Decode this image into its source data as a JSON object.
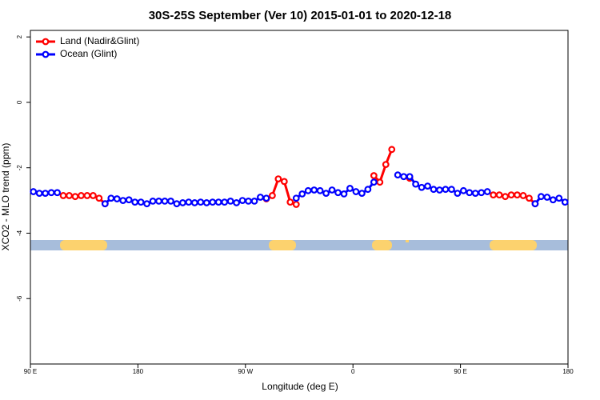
{
  "chart_data": {
    "type": "line",
    "title": "30S-25S September (Ver 10)   2015-01-01 to 2020-12-18",
    "xlabel": "Longitude (deg E)",
    "ylabel": "XCO2 - MLO trend (ppm)",
    "x": [
      92.5,
      97.5,
      102.5,
      107.5,
      112.5,
      117.5,
      122.5,
      127.5,
      132.5,
      137.5,
      142.5,
      147.5,
      152.5,
      157.5,
      162.5,
      167.5,
      172.5,
      177.5,
      182.5,
      187.5,
      192.5,
      197.5,
      202.5,
      207.5,
      212.5,
      217.5,
      222.5,
      227.5,
      232.5,
      237.5,
      242.5,
      247.5,
      252.5,
      257.5,
      262.5,
      267.5,
      272.5,
      277.5,
      282.5,
      287.5,
      292.5,
      297.5,
      302.5,
      307.5,
      312.5,
      317.5,
      322.5,
      327.5,
      332.5,
      337.5,
      342.5,
      347.5,
      352.5,
      357.5,
      362.5,
      367.5,
      372.5,
      377.5,
      382.5,
      387.5,
      392.5,
      397.5,
      402.5,
      407.5,
      412.5,
      417.5,
      422.5,
      427.5,
      432.5,
      437.5,
      442.5,
      447.5,
      452.5,
      457.5,
      462.5,
      467.5,
      472.5,
      477.5,
      482.5,
      487.5,
      492.5,
      497.5,
      502.5,
      507.5,
      512.5,
      517.5,
      522.5,
      527.5,
      532.5,
      537.5
    ],
    "series": [
      {
        "name": "Land (Nadir&Glint)",
        "color": "#ff0000",
        "values": [
          null,
          null,
          null,
          null,
          null,
          -2.85,
          -2.85,
          -2.88,
          -2.85,
          -2.85,
          -2.85,
          -2.93,
          -3.1,
          null,
          null,
          null,
          null,
          null,
          null,
          null,
          null,
          null,
          null,
          null,
          null,
          null,
          null,
          null,
          null,
          null,
          null,
          null,
          null,
          null,
          null,
          null,
          null,
          null,
          null,
          -2.95,
          -2.85,
          -2.34,
          -2.42,
          -3.05,
          -3.12,
          null,
          null,
          null,
          null,
          null,
          null,
          null,
          null,
          null,
          null,
          null,
          null,
          -2.24,
          -2.44,
          -1.9,
          -1.44,
          null,
          null,
          -2.32,
          null,
          null,
          null,
          null,
          null,
          null,
          null,
          null,
          null,
          null,
          null,
          null,
          null,
          -2.83,
          -2.83,
          -2.88,
          -2.83,
          -2.83,
          -2.85,
          -2.93,
          -3.1,
          null,
          null,
          null,
          null,
          null
        ]
      },
      {
        "name": "Ocean (Glint)",
        "color": "#0000ff",
        "values": [
          -2.73,
          -2.78,
          -2.78,
          -2.76,
          -2.76,
          null,
          null,
          null,
          null,
          null,
          null,
          null,
          -3.1,
          -2.93,
          -2.95,
          -3.0,
          -2.98,
          -3.05,
          -3.05,
          -3.1,
          -3.02,
          -3.02,
          -3.02,
          -3.02,
          -3.1,
          -3.07,
          -3.05,
          -3.07,
          -3.05,
          -3.07,
          -3.05,
          -3.05,
          -3.05,
          -3.02,
          -3.07,
          -3.0,
          -3.02,
          -3.02,
          -2.9,
          -2.93,
          null,
          null,
          null,
          null,
          -2.93,
          -2.8,
          -2.7,
          -2.68,
          -2.7,
          -2.78,
          -2.68,
          -2.76,
          -2.8,
          -2.63,
          -2.73,
          -2.78,
          -2.66,
          -2.44,
          null,
          null,
          null,
          -2.22,
          -2.27,
          -2.27,
          -2.5,
          -2.6,
          -2.56,
          -2.66,
          -2.68,
          -2.66,
          -2.66,
          -2.78,
          -2.7,
          -2.76,
          -2.78,
          -2.76,
          -2.73,
          null,
          null,
          null,
          null,
          null,
          null,
          null,
          -3.1,
          -2.88,
          -2.9,
          -2.98,
          -2.93,
          -3.05
        ]
      }
    ],
    "xlim": [
      90,
      540
    ],
    "xticks": [
      {
        "value": 90,
        "label": "90 E"
      },
      180,
      {
        "value": 270,
        "label": "90 W"
      },
      {
        "value": 360,
        "label": "0"
      },
      {
        "value": 450,
        "label": "90 E"
      },
      {
        "value": 540,
        "label": "180"
      }
    ],
    "ylim": [
      -8,
      2.2
    ],
    "yticks": [
      -6,
      -4,
      -2,
      0,
      2
    ],
    "legend": "top-left"
  }
}
